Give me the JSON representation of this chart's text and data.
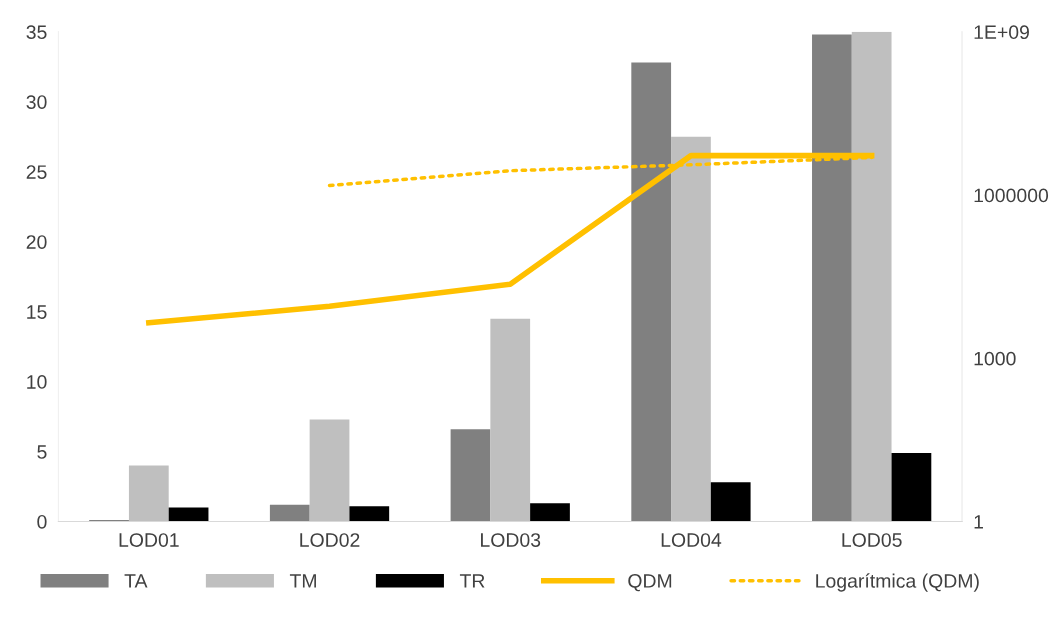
{
  "chart_data": {
    "type": "bar",
    "categories": [
      "LOD01",
      "LOD02",
      "LOD03",
      "LOD04",
      "LOD05"
    ],
    "series": [
      {
        "name": "TA",
        "color": "#808080",
        "values": [
          0.1,
          1.2,
          6.6,
          32.8,
          34.8
        ]
      },
      {
        "name": "TM",
        "color": "#bfbfbf",
        "values": [
          4.0,
          7.3,
          14.5,
          27.5,
          35.0
        ]
      },
      {
        "name": "TR",
        "color": "#000000",
        "values": [
          1.0,
          1.1,
          1.3,
          2.8,
          4.9
        ]
      },
      {
        "name": "QDM",
        "color": "#ffc000",
        "type": "line",
        "axis": "y2",
        "line_style": "solid",
        "values": [
          4500,
          9000,
          23000,
          5300000,
          5300000
        ]
      },
      {
        "name": "Logarítmica (QDM)",
        "color": "#ffc000",
        "type": "line",
        "axis": "y2",
        "line_style": "dotted",
        "values": [
          null,
          1500000,
          2800000,
          3600000,
          4900000
        ]
      }
    ],
    "ylim": [
      0,
      35
    ],
    "yticks": [
      0,
      5,
      10,
      15,
      20,
      25,
      30,
      35
    ],
    "log": "y2",
    "y2lim": [
      1,
      1000000000
    ],
    "y2ticks": [
      1,
      1000,
      1000000,
      {
        "value": 1000000000,
        "label": "1E+09"
      }
    ],
    "grid": false,
    "legend": "bottom",
    "marker": "none"
  }
}
